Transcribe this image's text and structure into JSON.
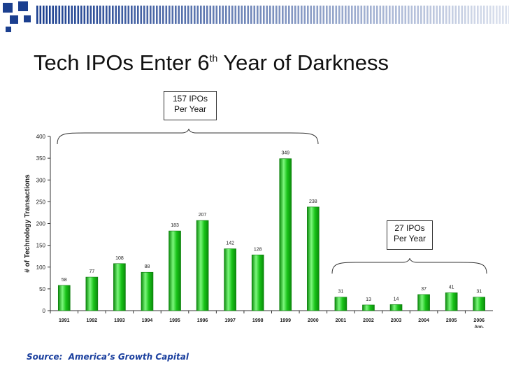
{
  "slide": {
    "title_main": "Tech IPOs Enter 6",
    "title_sup": "th",
    "title_rest": " Year of Darkness",
    "source_label": "Source:",
    "source_value": "America’s Growth Capital",
    "callout_1990s": {
      "line1": "157 IPOs",
      "line2": "Per Year"
    },
    "callout_2000s": {
      "line1": "27 IPOs",
      "line2": "Per Year"
    },
    "colors": {
      "bar": "#19c319",
      "bar_light": "#7cf77c",
      "bar_dark": "#0a8a0a",
      "deco": "#1b3f8f"
    }
  },
  "chart_data": {
    "type": "bar",
    "title": "",
    "xlabel": "",
    "ylabel": "# of Technology Transactions",
    "categories": [
      "1991",
      "1992",
      "1993",
      "1994",
      "1995",
      "1996",
      "1997",
      "1998",
      "1999",
      "2000",
      "2001",
      "2002",
      "2003",
      "2004",
      "2005",
      "2006"
    ],
    "category_sublabels": [
      "",
      "",
      "",
      "",
      "",
      "",
      "",
      "",
      "",
      "",
      "",
      "",
      "",
      "",
      "",
      "Ann."
    ],
    "values": [
      58,
      77,
      108,
      88,
      183,
      207,
      142,
      128,
      349,
      238,
      31,
      13,
      14,
      37,
      41,
      31
    ],
    "ylim": [
      0,
      400
    ],
    "yticks": [
      0,
      50,
      100,
      150,
      200,
      250,
      300,
      350,
      400
    ],
    "grid": false,
    "legend": "none"
  }
}
